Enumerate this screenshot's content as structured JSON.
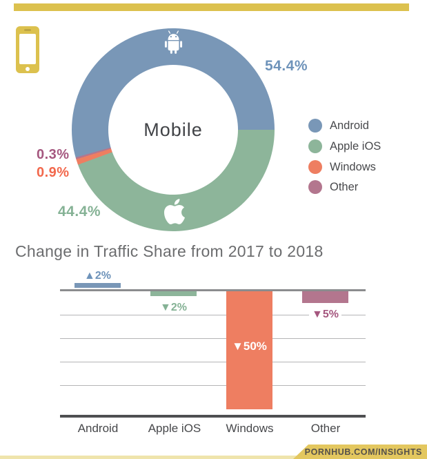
{
  "watermark": {
    "text": "PORNHUB.COM/INSIGHTS"
  },
  "theme": {
    "yellow": "#dcc14e",
    "yellow_badge": "#e3c75f",
    "yellow_strip": "#efe4ac",
    "zero_line": "#8b8c8e",
    "grid_line": "#b4b4b6",
    "axis_line": "#4e4f51"
  },
  "donut": {
    "center_label": "Mobile",
    "segments": [
      {
        "label": "Android",
        "value": 54.4,
        "pct_label": "54.4%",
        "color": "#7997b7",
        "label_color": "#6e93ba"
      },
      {
        "label": "Apple iOS",
        "value": 44.4,
        "pct_label": "44.4%",
        "color": "#8db59a",
        "label_color": "#85b295"
      },
      {
        "label": "Windows",
        "value": 0.9,
        "pct_label": "0.9%",
        "color": "#ee7e61",
        "label_color": "#f2684c"
      },
      {
        "label": "Other",
        "value": 0.3,
        "pct_label": "0.3%",
        "color": "#b3768e",
        "label_color": "#a5577f"
      }
    ]
  },
  "bar_chart": {
    "title": "Change in Traffic Share from 2017 to 2018",
    "bars": [
      {
        "label": "Android",
        "value": 2,
        "change_label": "▲2%",
        "color": "#7997b7",
        "label_color": "#6e93ba"
      },
      {
        "label": "Apple iOS",
        "value": -2,
        "change_label": "▼2%",
        "color": "#8db59a",
        "label_color": "#85b295"
      },
      {
        "label": "Windows",
        "value": -50,
        "change_label": "▼50%",
        "color": "#ee7e61",
        "label_color": "#ffffff"
      },
      {
        "label": "Other",
        "value": -5,
        "change_label": "▼5%",
        "color": "#b3768e",
        "label_color": "#a5577f"
      }
    ]
  },
  "chart_data": [
    {
      "type": "pie",
      "subtype": "donut",
      "title": "Mobile",
      "labels": [
        "Android",
        "Apple iOS",
        "Windows",
        "Other"
      ],
      "values": [
        54.4,
        44.4,
        0.9,
        0.3
      ],
      "colors": [
        "#7997b7",
        "#8db59a",
        "#ee7e61",
        "#b3768e"
      ],
      "legend_position": "right",
      "clockwise_order_from_3oclock": [
        "Apple iOS",
        "Windows",
        "Other",
        "Android"
      ]
    },
    {
      "type": "bar",
      "title": "Change in Traffic Share from 2017 to 2018",
      "categories": [
        "Android",
        "Apple iOS",
        "Windows",
        "Other"
      ],
      "values": [
        2,
        -2,
        -50,
        -5
      ],
      "value_labels": [
        "▲2%",
        "▼2%",
        "▼50%",
        "▼5%"
      ],
      "ylim": [
        -50,
        2
      ],
      "gridlines_at": [
        -10,
        -20,
        -30,
        -40
      ],
      "grid": true,
      "legend_position": "none"
    }
  ]
}
